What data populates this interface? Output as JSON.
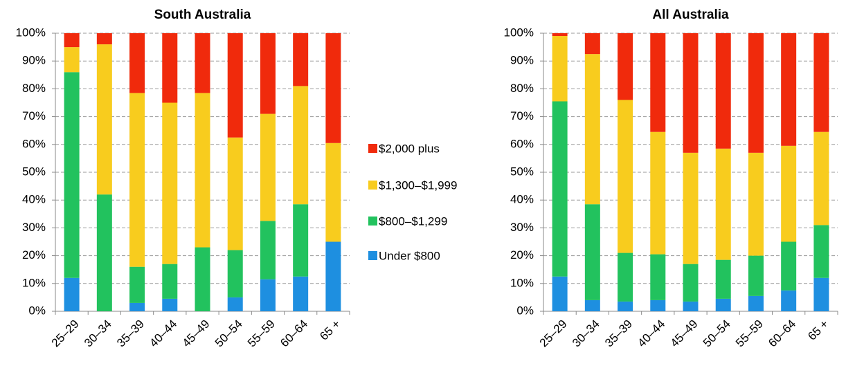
{
  "chart_data": [
    {
      "type": "stacked_bar",
      "title": "South Australia",
      "categories": [
        "25–29",
        "30–34",
        "35–39",
        "40–44",
        "45–49",
        "50–54",
        "55–59",
        "60–64",
        "65 +"
      ],
      "series": [
        {
          "name": "Under $800",
          "color": "#1e8fe0",
          "values": [
            12,
            0,
            3,
            4.5,
            0,
            5,
            11.5,
            12.5,
            25
          ]
        },
        {
          "name": "$800–$1,299",
          "color": "#22c25e",
          "values": [
            74,
            42,
            13,
            12.5,
            23,
            17,
            21,
            26,
            0
          ]
        },
        {
          "name": "$1,300–$1,999",
          "color": "#f8cc1e",
          "values": [
            9,
            54,
            62.5,
            58,
            55.5,
            40.5,
            38.5,
            42.5,
            35.5
          ]
        },
        {
          "name": "$2,000 plus",
          "color": "#f02a0c",
          "values": [
            5,
            4,
            21.5,
            25,
            21.5,
            37.5,
            29,
            19,
            39.5
          ]
        }
      ],
      "ylim": [
        0,
        100
      ],
      "yticks": [
        {
          "value": 0,
          "label": "0%"
        },
        {
          "value": 10,
          "label": "10%"
        },
        {
          "value": 20,
          "label": "20%"
        },
        {
          "value": 30,
          "label": "30%"
        },
        {
          "value": 40,
          "label": "40%"
        },
        {
          "value": 50,
          "label": "50%"
        },
        {
          "value": 60,
          "label": "60%"
        },
        {
          "value": 70,
          "label": "70%"
        },
        {
          "value": 80,
          "label": "80%"
        },
        {
          "value": 90,
          "label": "90%"
        },
        {
          "value": 100,
          "label": "100%"
        }
      ],
      "grid": true
    },
    {
      "type": "stacked_bar",
      "title": "All Australia",
      "categories": [
        "25–29",
        "30–34",
        "35–39",
        "40–44",
        "45–49",
        "50–54",
        "55–59",
        "60–64",
        "65 +"
      ],
      "series": [
        {
          "color": "#1e8fe0",
          "values": [
            12.5,
            4,
            3.5,
            4,
            3.5,
            4.5,
            5.5,
            7.5,
            12
          ]
        },
        {
          "color": "#22c25e",
          "values": [
            63,
            34.5,
            17.5,
            16.5,
            13.5,
            14,
            14.5,
            17.5,
            19
          ]
        },
        {
          "color": "#f8cc1e",
          "values": [
            23.5,
            54,
            55,
            44,
            40,
            40,
            37,
            34.5,
            33.5
          ]
        },
        {
          "color": "#f02a0c",
          "values": [
            1,
            7.5,
            24,
            35.5,
            43,
            41.5,
            43,
            40.5,
            35.5
          ]
        }
      ],
      "ylim": [
        0,
        100
      ],
      "yticks": [
        {
          "value": 0,
          "label": "0%"
        },
        {
          "value": 10,
          "label": "10%"
        },
        {
          "value": 20,
          "label": "20%"
        },
        {
          "value": 30,
          "label": "30%"
        },
        {
          "value": 40,
          "label": "40%"
        },
        {
          "value": 50,
          "label": "50%"
        },
        {
          "value": 60,
          "label": "60%"
        },
        {
          "value": 70,
          "label": "70%"
        },
        {
          "value": 80,
          "label": "80%"
        },
        {
          "value": 90,
          "label": "90%"
        },
        {
          "value": 100,
          "label": "100%"
        }
      ],
      "grid": true
    }
  ]
}
